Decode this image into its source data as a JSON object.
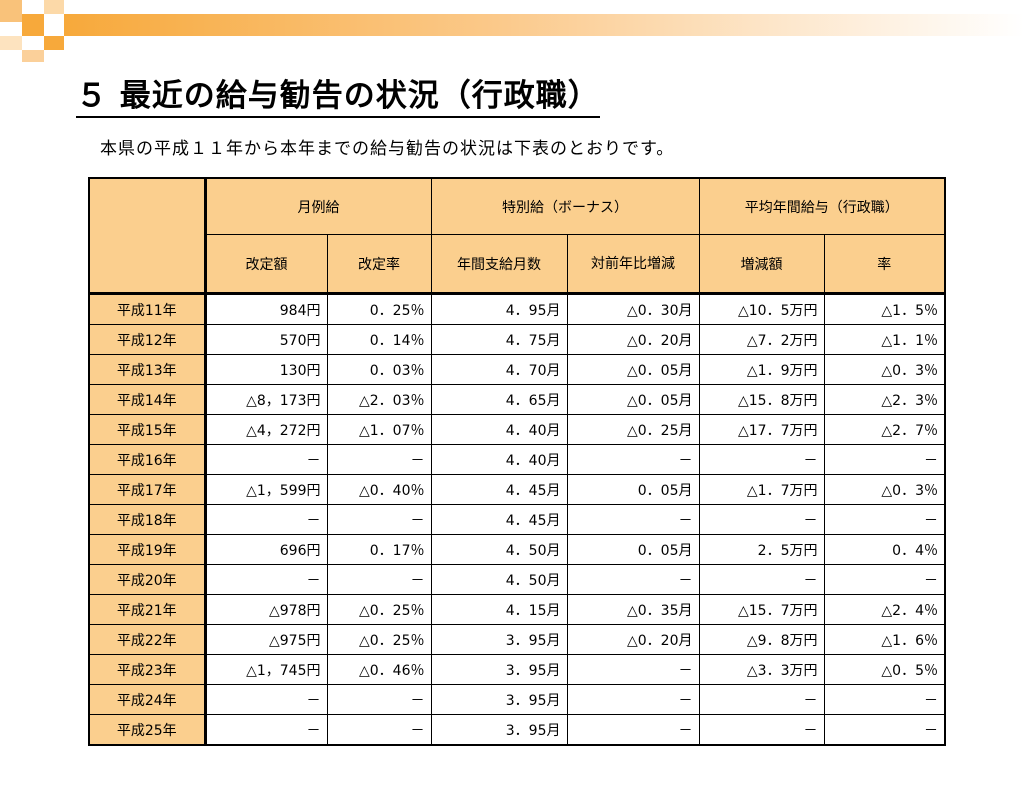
{
  "title": "５ 最近の給与勧告の状況（行政職）",
  "subtitle": "本県の平成１１年から本年までの給与勧告の状況は下表のとおりです。",
  "table": {
    "groups": [
      "月例給",
      "特別給（ボーナス）",
      "平均年間給与（行政職）"
    ],
    "columns": [
      "改定額",
      "改定率",
      "年間支給月数",
      "対前年比増減",
      "増減額",
      "率"
    ],
    "rows": [
      {
        "year": "平成11年",
        "cells": [
          "984円",
          "0．25％",
          "4．95月",
          "△0．30月",
          "△10．5万円",
          "△1．5％"
        ]
      },
      {
        "year": "平成12年",
        "cells": [
          "570円",
          "0．14％",
          "4．75月",
          "△0．20月",
          "△7．2万円",
          "△1．1％"
        ]
      },
      {
        "year": "平成13年",
        "cells": [
          "130円",
          "0．03％",
          "4．70月",
          "△0．05月",
          "△1．9万円",
          "△0．3％"
        ]
      },
      {
        "year": "平成14年",
        "cells": [
          "△8，173円",
          "△2．03％",
          "4．65月",
          "△0．05月",
          "△15．8万円",
          "△2．3％"
        ]
      },
      {
        "year": "平成15年",
        "cells": [
          "△4，272円",
          "△1．07％",
          "4．40月",
          "△0．25月",
          "△17．7万円",
          "△2．7％"
        ]
      },
      {
        "year": "平成16年",
        "cells": [
          "－",
          "－",
          "4．40月",
          "－",
          "－",
          "－"
        ]
      },
      {
        "year": "平成17年",
        "cells": [
          "△1，599円",
          "△0．40％",
          "4．45月",
          "0．05月",
          "△1．7万円",
          "△0．3％"
        ]
      },
      {
        "year": "平成18年",
        "cells": [
          "－",
          "－",
          "4．45月",
          "－",
          "－",
          "－"
        ]
      },
      {
        "year": "平成19年",
        "cells": [
          "696円",
          "0．17％",
          "4．50月",
          "0．05月",
          "2．5万円",
          "0．4％"
        ]
      },
      {
        "year": "平成20年",
        "cells": [
          "－",
          "－",
          "4．50月",
          "－",
          "－",
          "－"
        ]
      },
      {
        "year": "平成21年",
        "cells": [
          "△978円",
          "△0．25％",
          "4．15月",
          "△0．35月",
          "△15．7万円",
          "△2．4％"
        ]
      },
      {
        "year": "平成22年",
        "cells": [
          "△975円",
          "△0．25％",
          "3．95月",
          "△0．20月",
          "△9．8万円",
          "△1．6％"
        ]
      },
      {
        "year": "平成23年",
        "cells": [
          "△1，745円",
          "△0．46％",
          "3．95月",
          "－",
          "△3．3万円",
          "△0．5％"
        ]
      },
      {
        "year": "平成24年",
        "cells": [
          "－",
          "－",
          "3．95月",
          "－",
          "－",
          "－"
        ]
      },
      {
        "year": "平成25年",
        "cells": [
          "－",
          "－",
          "3．95月",
          "－",
          "－",
          "－"
        ]
      }
    ]
  }
}
